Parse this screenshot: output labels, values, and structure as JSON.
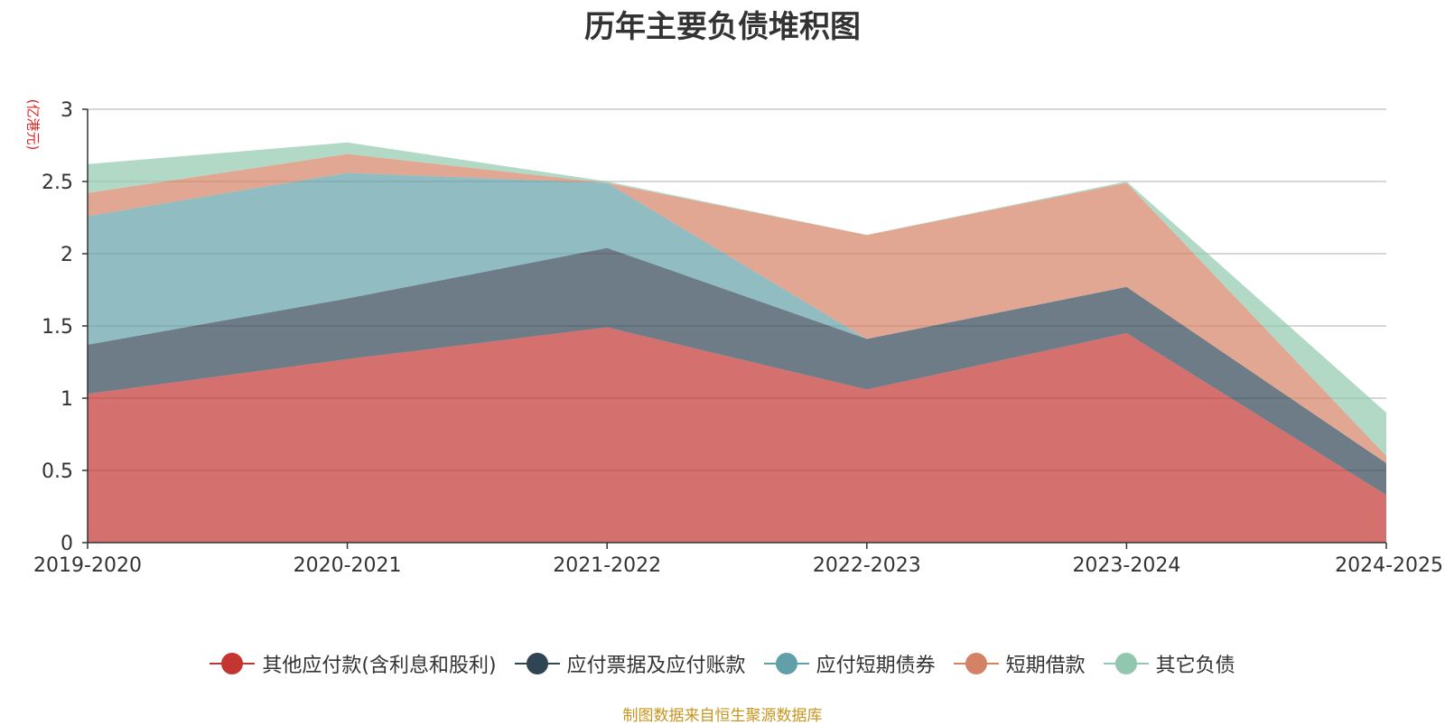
{
  "chart_data": {
    "type": "area",
    "stacked": true,
    "title": "历年主要负债堆积图",
    "unit_label": "(亿港元)",
    "categories": [
      "2019-2020",
      "2020-2021",
      "2021-2022",
      "2022-2023",
      "2023-2024",
      "2024-2025"
    ],
    "ylim": [
      0,
      3
    ],
    "yticks": [
      "0",
      "0.5",
      "1",
      "1.5",
      "2",
      "2.5",
      "3"
    ],
    "grid": true,
    "legend_position": "bottom",
    "series": [
      {
        "name": "其他应付款(含利息和股利)",
        "color": "#c23531",
        "values": [
          1.03,
          1.27,
          1.49,
          1.06,
          1.45,
          0.33
        ]
      },
      {
        "name": "应付票据及应付账款",
        "color": "#2f4554",
        "values": [
          0.34,
          0.42,
          0.55,
          0.35,
          0.32,
          0.22
        ]
      },
      {
        "name": "应付短期债券",
        "color": "#61a0a8",
        "values": [
          0.89,
          0.87,
          0.45,
          0.0,
          0.0,
          0.0
        ]
      },
      {
        "name": "短期借款",
        "color": "#d48265",
        "values": [
          0.16,
          0.13,
          0.0,
          0.72,
          0.72,
          0.05
        ]
      },
      {
        "name": "其它负债",
        "color": "#91c7ae",
        "values": [
          0.2,
          0.08,
          0.01,
          0.0,
          0.01,
          0.3
        ]
      }
    ],
    "source": "制图数据来自恒生聚源数据库"
  }
}
